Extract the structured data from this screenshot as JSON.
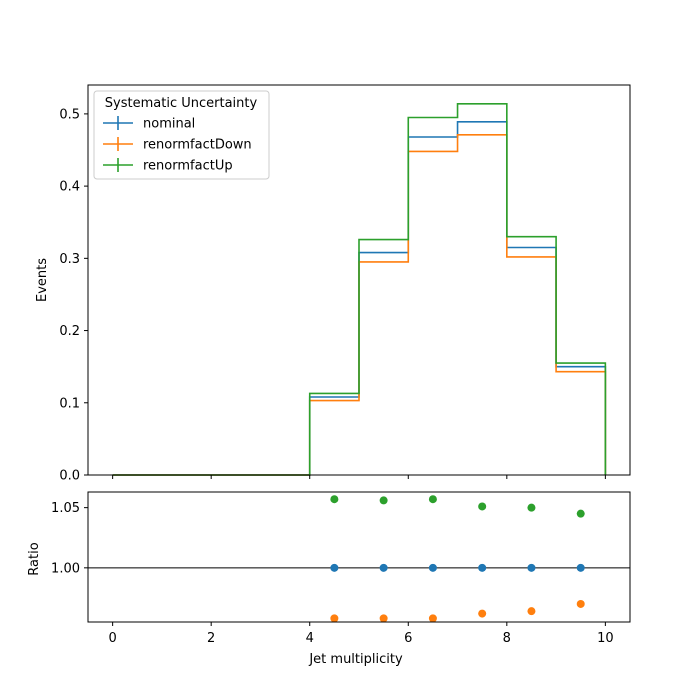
{
  "chart_data": [
    {
      "type": "line",
      "panel": "main",
      "drawstyle": "steps",
      "xlabel": "",
      "ylabel": "Events",
      "xlim": [
        -0.5,
        10.5
      ],
      "ylim": [
        0,
        0.54
      ],
      "x_ticks": [
        0,
        2,
        4,
        6,
        8,
        10
      ],
      "y_ticks": [
        0.0,
        0.1,
        0.2,
        0.3,
        0.4,
        0.5
      ],
      "y_tick_labels": [
        "0.0",
        "0.1",
        "0.2",
        "0.3",
        "0.4",
        "0.5"
      ],
      "bin_edges": [
        0,
        1,
        2,
        3,
        4,
        5,
        6,
        7,
        8,
        9,
        10
      ],
      "legend_title": "Systematic Uncertainty",
      "legend_position": "top-left",
      "grid": false,
      "series": [
        {
          "name": "nominal",
          "color": "#1f77b4",
          "values": [
            0,
            0,
            0,
            0,
            0.108,
            0.308,
            0.468,
            0.489,
            0.315,
            0.15
          ]
        },
        {
          "name": "renormfactDown",
          "color": "#ff7f0e",
          "values": [
            0,
            0,
            0,
            0,
            0.103,
            0.295,
            0.448,
            0.471,
            0.302,
            0.143
          ]
        },
        {
          "name": "renormfactUp",
          "color": "#2ca02c",
          "values": [
            0,
            0,
            0,
            0,
            0.113,
            0.326,
            0.495,
            0.514,
            0.33,
            0.155
          ]
        }
      ]
    },
    {
      "type": "scatter",
      "panel": "ratio",
      "xlabel": "Jet multiplicity",
      "ylabel": "Ratio",
      "xlim": [
        -0.5,
        10.5
      ],
      "ylim": [
        0.955,
        1.063
      ],
      "x_ticks": [
        0,
        2,
        4,
        6,
        8,
        10
      ],
      "y_ticks": [
        1.0,
        1.05
      ],
      "y_tick_labels": [
        "1.00",
        "1.05"
      ],
      "reference_line": 1.0,
      "grid": false,
      "x": [
        4.5,
        5.5,
        6.5,
        7.5,
        8.5,
        9.5
      ],
      "series": [
        {
          "name": "nominal",
          "color": "#1f77b4",
          "values": [
            1.0,
            1.0,
            1.0,
            1.0,
            1.0,
            1.0
          ]
        },
        {
          "name": "renormfactDown",
          "color": "#ff7f0e",
          "values": [
            0.958,
            0.958,
            0.958,
            0.962,
            0.964,
            0.97
          ]
        },
        {
          "name": "renormfactUp",
          "color": "#2ca02c",
          "values": [
            1.057,
            1.056,
            1.057,
            1.051,
            1.05,
            1.045
          ]
        }
      ]
    }
  ]
}
